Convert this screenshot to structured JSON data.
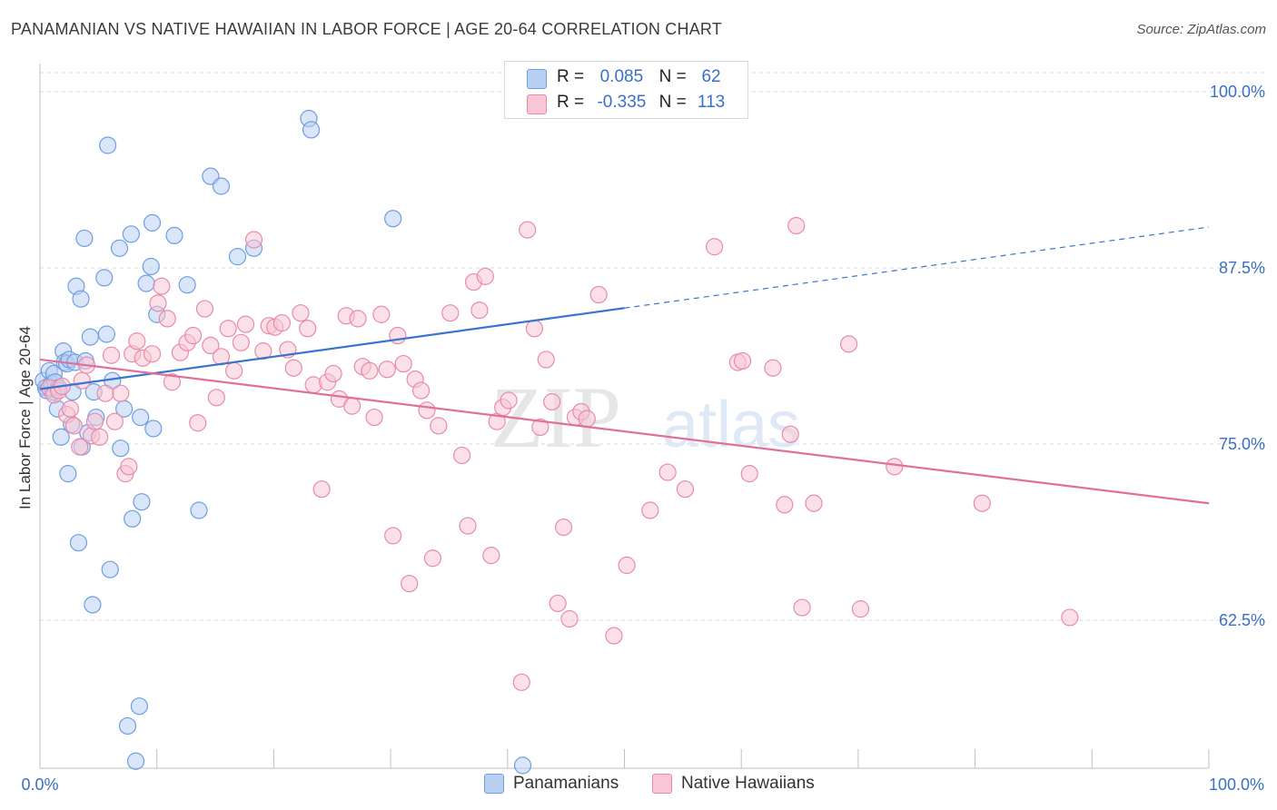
{
  "header": {
    "title": "PANAMANIAN VS NATIVE HAWAIIAN IN LABOR FORCE | AGE 20-64 CORRELATION CHART",
    "source": "Source: ZipAtlas.com"
  },
  "stats_box": {
    "rows": [
      {
        "r_label": "R =",
        "r_value": "0.085",
        "n_label": "N =",
        "n_value": "62"
      },
      {
        "r_label": "R =",
        "r_value": "-0.335",
        "n_label": "N =",
        "n_value": "113"
      }
    ]
  },
  "watermark": {
    "zip": "ZIP",
    "atlas": "atlas"
  },
  "legend": {
    "items": [
      "Panamanians",
      "Native Hawaiians"
    ]
  },
  "colors": {
    "blue_fill": "#b9d0f2",
    "blue_stroke": "#6f9ee0",
    "blue_line": "#3a74d0",
    "pink_fill": "#f8c6d6",
    "pink_stroke": "#e98aa9",
    "pink_line": "#e0709a",
    "tick_label": "#3a6fc7",
    "grid": "#d9d9d9"
  },
  "chart_data": {
    "type": "scatter",
    "title": "PANAMANIAN VS NATIVE HAWAIIAN IN LABOR FORCE | AGE 20-64 CORRELATION CHART",
    "xlabel": "",
    "ylabel": "In Labor Force | Age 20-64",
    "xlim": [
      0,
      100
    ],
    "ylim": [
      52,
      102
    ],
    "x_tick_labels": [
      "0.0%",
      "100.0%"
    ],
    "y_ticks": [
      62.5,
      75.0,
      87.5,
      100.0
    ],
    "y_tick_labels": [
      "62.5%",
      "75.0%",
      "87.5%",
      "100.0%"
    ],
    "grid": true,
    "legend_position": "bottom-center",
    "series": [
      {
        "name": "Panamanians",
        "r": 0.085,
        "n": 62,
        "trend": {
          "x0": 0,
          "y0": 78.9,
          "x1": 100,
          "y1": 90.4,
          "solid_until_x": 50
        },
        "points": [
          [
            0.3,
            79.5
          ],
          [
            0.5,
            79.0
          ],
          [
            0.6,
            78.8
          ],
          [
            0.8,
            80.2
          ],
          [
            0.9,
            78.9
          ],
          [
            1.0,
            79.3
          ],
          [
            1.1,
            78.7
          ],
          [
            1.2,
            80.0
          ],
          [
            1.3,
            79.4
          ],
          [
            1.5,
            77.5
          ],
          [
            1.6,
            79.0
          ],
          [
            1.8,
            75.5
          ],
          [
            2.0,
            81.6
          ],
          [
            2.1,
            80.8
          ],
          [
            2.3,
            80.7
          ],
          [
            2.4,
            72.9
          ],
          [
            2.5,
            81.0
          ],
          [
            2.7,
            76.4
          ],
          [
            2.8,
            78.7
          ],
          [
            3.0,
            80.8
          ],
          [
            3.1,
            86.2
          ],
          [
            3.3,
            68.0
          ],
          [
            3.5,
            85.3
          ],
          [
            3.6,
            74.8
          ],
          [
            3.8,
            89.6
          ],
          [
            3.9,
            80.9
          ],
          [
            4.1,
            75.8
          ],
          [
            4.3,
            82.6
          ],
          [
            4.5,
            63.6
          ],
          [
            4.6,
            78.7
          ],
          [
            4.8,
            76.9
          ],
          [
            5.5,
            86.8
          ],
          [
            5.7,
            82.8
          ],
          [
            5.8,
            96.2
          ],
          [
            6.0,
            66.1
          ],
          [
            6.2,
            79.5
          ],
          [
            6.8,
            88.9
          ],
          [
            6.9,
            74.7
          ],
          [
            7.2,
            77.5
          ],
          [
            7.5,
            55.0
          ],
          [
            7.8,
            89.9
          ],
          [
            7.9,
            69.7
          ],
          [
            8.2,
            52.5
          ],
          [
            8.5,
            56.4
          ],
          [
            8.6,
            76.9
          ],
          [
            8.7,
            70.9
          ],
          [
            9.1,
            86.4
          ],
          [
            9.5,
            87.6
          ],
          [
            9.6,
            90.7
          ],
          [
            9.7,
            76.1
          ],
          [
            10.0,
            84.2
          ],
          [
            11.5,
            89.8
          ],
          [
            12.6,
            86.3
          ],
          [
            13.6,
            70.3
          ],
          [
            14.6,
            94.0
          ],
          [
            15.5,
            93.3
          ],
          [
            16.9,
            88.3
          ],
          [
            18.3,
            88.9
          ],
          [
            23.0,
            98.1
          ],
          [
            23.2,
            97.3
          ],
          [
            30.2,
            91.0
          ],
          [
            41.3,
            52.2
          ]
        ]
      },
      {
        "name": "Native Hawaiians",
        "r": -0.335,
        "n": 113,
        "trend": {
          "x0": 0,
          "y0": 81.0,
          "x1": 100,
          "y1": 70.8
        },
        "points": [
          [
            0.8,
            79.0
          ],
          [
            1.2,
            78.5
          ],
          [
            1.6,
            78.8
          ],
          [
            1.9,
            79.1
          ],
          [
            2.3,
            77.1
          ],
          [
            2.6,
            77.5
          ],
          [
            2.9,
            76.3
          ],
          [
            3.4,
            74.8
          ],
          [
            3.6,
            79.5
          ],
          [
            4.0,
            80.6
          ],
          [
            4.4,
            75.6
          ],
          [
            4.7,
            76.6
          ],
          [
            5.1,
            75.5
          ],
          [
            5.6,
            78.6
          ],
          [
            6.1,
            81.3
          ],
          [
            6.4,
            76.6
          ],
          [
            6.9,
            78.6
          ],
          [
            7.3,
            72.9
          ],
          [
            7.6,
            73.4
          ],
          [
            7.9,
            81.4
          ],
          [
            8.3,
            82.3
          ],
          [
            8.8,
            81.1
          ],
          [
            9.6,
            81.4
          ],
          [
            10.1,
            85.0
          ],
          [
            10.4,
            86.2
          ],
          [
            10.9,
            83.9
          ],
          [
            11.3,
            79.4
          ],
          [
            12.0,
            81.5
          ],
          [
            12.6,
            82.2
          ],
          [
            13.1,
            82.7
          ],
          [
            13.5,
            76.5
          ],
          [
            14.1,
            84.6
          ],
          [
            14.6,
            82.0
          ],
          [
            15.1,
            78.3
          ],
          [
            15.5,
            81.2
          ],
          [
            16.1,
            83.2
          ],
          [
            16.6,
            80.2
          ],
          [
            17.2,
            82.2
          ],
          [
            17.6,
            83.5
          ],
          [
            18.3,
            89.5
          ],
          [
            19.1,
            81.6
          ],
          [
            19.6,
            83.4
          ],
          [
            20.1,
            83.3
          ],
          [
            20.7,
            83.6
          ],
          [
            21.2,
            81.7
          ],
          [
            21.7,
            80.4
          ],
          [
            22.3,
            84.3
          ],
          [
            22.9,
            83.2
          ],
          [
            23.4,
            79.2
          ],
          [
            24.1,
            71.8
          ],
          [
            24.6,
            79.4
          ],
          [
            25.1,
            80.0
          ],
          [
            25.6,
            78.2
          ],
          [
            26.2,
            84.1
          ],
          [
            26.7,
            77.7
          ],
          [
            27.2,
            83.9
          ],
          [
            27.6,
            80.5
          ],
          [
            28.2,
            80.2
          ],
          [
            28.6,
            76.9
          ],
          [
            29.2,
            84.2
          ],
          [
            29.7,
            80.3
          ],
          [
            30.2,
            68.5
          ],
          [
            30.6,
            82.7
          ],
          [
            31.1,
            80.7
          ],
          [
            31.6,
            65.1
          ],
          [
            32.1,
            79.6
          ],
          [
            32.6,
            78.8
          ],
          [
            33.1,
            77.4
          ],
          [
            33.6,
            66.9
          ],
          [
            34.1,
            76.3
          ],
          [
            35.1,
            84.3
          ],
          [
            36.1,
            74.2
          ],
          [
            36.6,
            69.2
          ],
          [
            37.1,
            86.5
          ],
          [
            37.6,
            84.5
          ],
          [
            38.1,
            86.9
          ],
          [
            38.6,
            67.1
          ],
          [
            39.1,
            76.6
          ],
          [
            39.6,
            77.6
          ],
          [
            40.1,
            78.1
          ],
          [
            41.2,
            58.1
          ],
          [
            41.7,
            90.2
          ],
          [
            42.3,
            83.2
          ],
          [
            42.8,
            76.2
          ],
          [
            43.3,
            81.0
          ],
          [
            43.8,
            78.0
          ],
          [
            44.3,
            63.7
          ],
          [
            44.8,
            69.1
          ],
          [
            45.3,
            62.6
          ],
          [
            45.8,
            76.9
          ],
          [
            46.3,
            77.3
          ],
          [
            46.8,
            76.8
          ],
          [
            47.8,
            85.6
          ],
          [
            49.1,
            61.4
          ],
          [
            50.2,
            66.4
          ],
          [
            52.2,
            70.3
          ],
          [
            53.7,
            73.0
          ],
          [
            55.2,
            71.8
          ],
          [
            57.7,
            89.0
          ],
          [
            59.7,
            80.8
          ],
          [
            60.1,
            80.9
          ],
          [
            60.7,
            72.9
          ],
          [
            62.7,
            80.4
          ],
          [
            63.7,
            70.7
          ],
          [
            64.2,
            75.7
          ],
          [
            64.7,
            90.5
          ],
          [
            65.2,
            63.4
          ],
          [
            66.2,
            70.8
          ],
          [
            69.2,
            82.1
          ],
          [
            70.2,
            63.3
          ],
          [
            73.1,
            73.4
          ],
          [
            80.6,
            70.8
          ],
          [
            88.1,
            62.7
          ]
        ]
      }
    ]
  }
}
